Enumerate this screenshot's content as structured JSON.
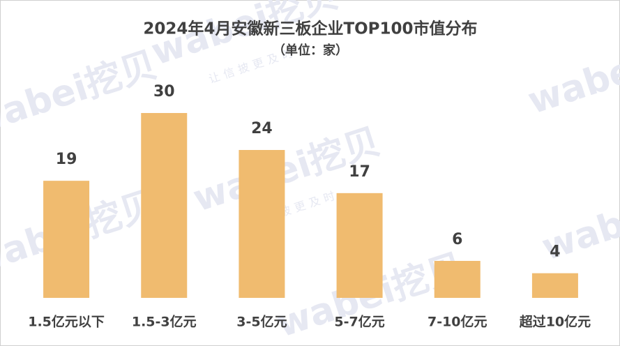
{
  "chart_data": {
    "type": "bar",
    "title": "2024年4月安徽新三板企业TOP100市值分布",
    "subtitle": "（单位：家）",
    "categories": [
      "1.5亿元以下",
      "1.5-3亿元",
      "3-5亿元",
      "5-7亿元",
      "7-10亿元",
      "超过10亿元"
    ],
    "values": [
      19,
      30,
      24,
      17,
      6,
      4
    ],
    "color": "#f0bb6f",
    "watermark": "wabei挖贝",
    "watermark_slogan": "让信披更及时"
  }
}
